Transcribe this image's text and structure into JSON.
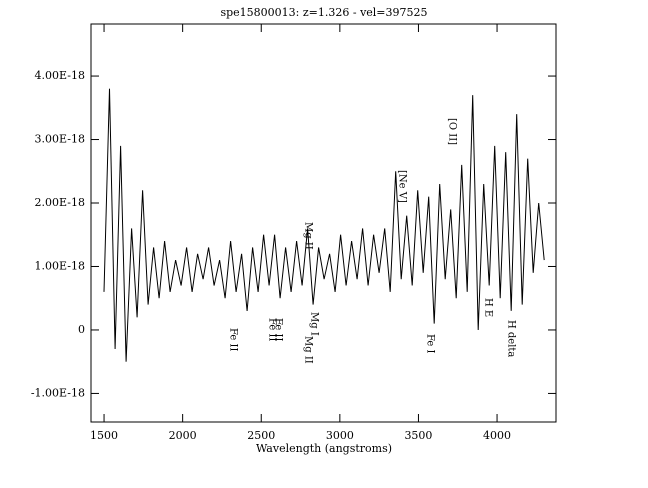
{
  "chart_data": {
    "type": "line",
    "title": "spe15800013: z=1.326 - vel=397525",
    "x_label": "Wavelength (angstroms)",
    "color": "#000000",
    "x": [
      1500,
      1535,
      1570,
      1605,
      1640,
      1675,
      1710,
      1745,
      1780,
      1815,
      1850,
      1885,
      1920,
      1955,
      1990,
      2025,
      2060,
      2095,
      2130,
      2165,
      2200,
      2235,
      2270,
      2305,
      2340,
      2375,
      2410,
      2445,
      2480,
      2515,
      2550,
      2585,
      2620,
      2655,
      2690,
      2725,
      2760,
      2795,
      2830,
      2865,
      2900,
      2935,
      2970,
      3005,
      3040,
      3075,
      3110,
      3145,
      3180,
      3215,
      3250,
      3285,
      3320,
      3355,
      3390,
      3425,
      3460,
      3495,
      3530,
      3565,
      3600,
      3635,
      3670,
      3705,
      3740,
      3775,
      3810,
      3845,
      3880,
      3915,
      3950,
      3985,
      4020,
      4055,
      4090,
      4125,
      4160,
      4195,
      4230,
      4265,
      4300
    ],
    "values": [
      6e-19,
      3.8e-18,
      -3e-19,
      2.9e-18,
      -5e-19,
      1.6e-18,
      2e-19,
      2.2e-18,
      4e-19,
      1.3e-18,
      5e-19,
      1.4e-18,
      6e-19,
      1.1e-18,
      7e-19,
      1.3e-18,
      6e-19,
      1.2e-18,
      8e-19,
      1.3e-18,
      7e-19,
      1.1e-18,
      5e-19,
      1.4e-18,
      6e-19,
      1.2e-18,
      3e-19,
      1.3e-18,
      6e-19,
      1.5e-18,
      7e-19,
      1.5e-18,
      5e-19,
      1.3e-18,
      6e-19,
      1.4e-18,
      7e-19,
      1.6e-18,
      4e-19,
      1.3e-18,
      8e-19,
      1.2e-18,
      6e-19,
      1.5e-18,
      7e-19,
      1.4e-18,
      8e-19,
      1.6e-18,
      7e-19,
      1.5e-18,
      9e-19,
      1.6e-18,
      6e-19,
      2.5e-18,
      8e-19,
      1.8e-18,
      7e-19,
      2.2e-18,
      9e-19,
      2.1e-18,
      1e-19,
      2.3e-18,
      8e-19,
      1.9e-18,
      5e-19,
      2.6e-18,
      6e-19,
      3.7e-18,
      0.0,
      2.3e-18,
      7e-19,
      2.9e-18,
      5e-19,
      2.8e-18,
      3e-19,
      3.4e-18,
      4e-19,
      2.7e-18,
      9e-19,
      2e-18,
      1.1e-18
    ],
    "xlim": [
      1417,
      4375
    ],
    "ylim": [
      -1.45e-18,
      4.82e-18
    ],
    "xticks": [
      1500,
      2000,
      2500,
      3000,
      3500,
      4000
    ],
    "yticks": [
      {
        "value": -1e-18,
        "label": "-1.00E-18"
      },
      0,
      {
        "value": 1e-18,
        "label": "1.00E-18"
      },
      {
        "value": 2e-18,
        "label": "2.00E-18"
      },
      {
        "value": 3e-18,
        "label": "3.00E-18"
      },
      {
        "value": 4e-18,
        "label": "4.00E-18"
      }
    ],
    "annotations": [
      "Fe II",
      "Fe II",
      "Fe II",
      "Mg II",
      "Mg I",
      "Mg II",
      "[Ne V]",
      "[O II]",
      "Fe I",
      "H E",
      "H delta"
    ]
  }
}
